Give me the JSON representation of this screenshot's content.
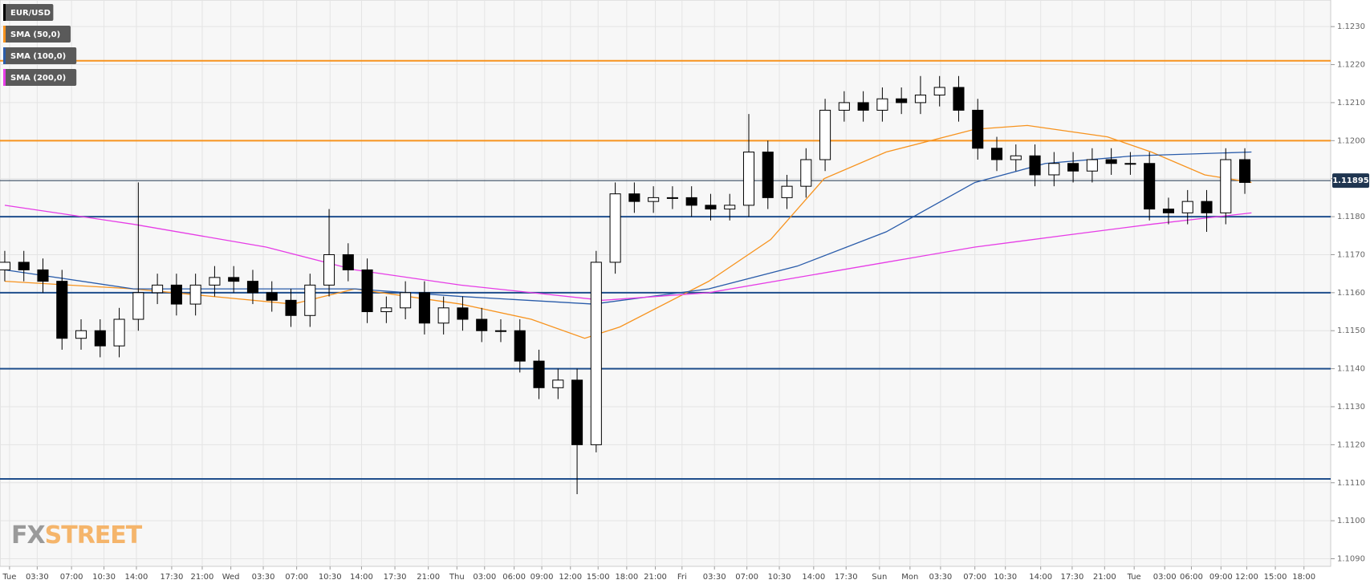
{
  "chart_data": {
    "type": "candlestick",
    "candle_name": "EUR/USD",
    "up_color": "#ffffff",
    "down_color": "#000000",
    "x": [
      0,
      2,
      4,
      6,
      8,
      10,
      12,
      14,
      16,
      18,
      20,
      22,
      24,
      26,
      28,
      30,
      32,
      34,
      36,
      38,
      40,
      42,
      44,
      46,
      48,
      50,
      52,
      54,
      56,
      58,
      60,
      62,
      64,
      66,
      68,
      70,
      72,
      74,
      76,
      78,
      80,
      82,
      84,
      86,
      88,
      90,
      92,
      94,
      96,
      98,
      100,
      102,
      104,
      106,
      108,
      110,
      112,
      114,
      116,
      118,
      120,
      122,
      124,
      126,
      128,
      130
    ],
    "open": [
      1.1166,
      1.1168,
      1.1166,
      1.1163,
      1.1148,
      1.115,
      1.1146,
      1.1153,
      1.116,
      1.1162,
      1.1157,
      1.1162,
      1.1164,
      1.1163,
      1.116,
      1.1158,
      1.1154,
      1.1162,
      1.117,
      1.1166,
      1.1155,
      1.1156,
      1.116,
      1.1152,
      1.1156,
      1.1153,
      1.115,
      1.115,
      1.1142,
      1.1135,
      1.1137,
      1.112,
      1.1168,
      1.1186,
      1.1184,
      1.1185,
      1.1185,
      1.1183,
      1.1182,
      1.1183,
      1.1197,
      1.1185,
      1.1188,
      1.1195,
      1.1208,
      1.121,
      1.1208,
      1.1211,
      1.121,
      1.1212,
      1.1214,
      1.1208,
      1.1198,
      1.1195,
      1.1196,
      1.1191,
      1.1194,
      1.1192,
      1.1195,
      1.1194,
      1.1194,
      1.1182,
      1.1181,
      1.1184,
      1.1181,
      1.1195
    ],
    "high": [
      1.1171,
      1.1171,
      1.1169,
      1.1166,
      1.1153,
      1.1153,
      1.1156,
      1.1189,
      1.1165,
      1.1165,
      1.1165,
      1.1167,
      1.1167,
      1.1166,
      1.1163,
      1.1161,
      1.1165,
      1.1182,
      1.1173,
      1.1169,
      1.1159,
      1.1163,
      1.1163,
      1.1159,
      1.1159,
      1.1156,
      1.1153,
      1.1153,
      1.1145,
      1.114,
      1.114,
      1.1171,
      1.1189,
      1.1189,
      1.1188,
      1.1188,
      1.1188,
      1.1186,
      1.1186,
      1.1207,
      1.12,
      1.1191,
      1.1198,
      1.1211,
      1.1213,
      1.1213,
      1.1214,
      1.1214,
      1.1217,
      1.1217,
      1.1217,
      1.1211,
      1.1201,
      1.1199,
      1.1199,
      1.1197,
      1.1197,
      1.1198,
      1.1198,
      1.1197,
      1.1197,
      1.1185,
      1.1187,
      1.1187,
      1.1198,
      1.1198
    ],
    "low": [
      1.1163,
      1.1163,
      1.116,
      1.1145,
      1.1145,
      1.1143,
      1.1143,
      1.115,
      1.1157,
      1.1154,
      1.1154,
      1.1159,
      1.116,
      1.1157,
      1.1155,
      1.1151,
      1.1151,
      1.1159,
      1.1163,
      1.1152,
      1.1152,
      1.1153,
      1.1149,
      1.1149,
      1.115,
      1.1147,
      1.1147,
      1.1139,
      1.1132,
      1.1132,
      1.1107,
      1.1118,
      1.1165,
      1.1181,
      1.1181,
      1.1182,
      1.118,
      1.1179,
      1.1179,
      1.118,
      1.1182,
      1.1182,
      1.1185,
      1.1192,
      1.1205,
      1.1205,
      1.1205,
      1.1207,
      1.1207,
      1.1209,
      1.1205,
      1.1195,
      1.1192,
      1.1192,
      1.1188,
      1.1188,
      1.1189,
      1.1189,
      1.1191,
      1.1191,
      1.1179,
      1.1178,
      1.1178,
      1.1176,
      1.1178,
      1.1186
    ],
    "close": [
      1.1168,
      1.1166,
      1.1163,
      1.1148,
      1.115,
      1.1146,
      1.1153,
      1.116,
      1.1162,
      1.1157,
      1.1162,
      1.1164,
      1.1163,
      1.116,
      1.1158,
      1.1154,
      1.1162,
      1.117,
      1.1166,
      1.1155,
      1.1156,
      1.116,
      1.1152,
      1.1156,
      1.1153,
      1.115,
      1.115,
      1.1142,
      1.1135,
      1.1137,
      1.112,
      1.1168,
      1.1186,
      1.1184,
      1.1185,
      1.1185,
      1.1183,
      1.1182,
      1.1183,
      1.1197,
      1.1185,
      1.1188,
      1.1195,
      1.1208,
      1.121,
      1.1208,
      1.1211,
      1.121,
      1.1212,
      1.1214,
      1.1208,
      1.1198,
      1.1195,
      1.1196,
      1.1191,
      1.1194,
      1.1192,
      1.1195,
      1.1194,
      1.1194,
      1.1182,
      1.1181,
      1.1184,
      1.1181,
      1.1195,
      1.1189
    ],
    "series": [
      {
        "name": "SMA (50,0)",
        "color": "#f7931e",
        "x": [
          0,
          13.5,
          30.2,
          36.7,
          47.8,
          55.2,
          60.8,
          64.5,
          73.8,
          80.3,
          85.9,
          92.4,
          101.7,
          107.2,
          115.6,
          120.2,
          125.8,
          130.7
        ],
        "values": [
          1.1163,
          1.1161,
          1.1157,
          1.1161,
          1.1157,
          1.1153,
          1.1148,
          1.1151,
          1.1163,
          1.1174,
          1.119,
          1.1197,
          1.1203,
          1.1204,
          1.1201,
          1.1197,
          1.1191,
          1.1189
        ]
      },
      {
        "name": "SMA (100,0)",
        "color": "#2a5caa",
        "x": [
          0,
          13.5,
          36.7,
          47.8,
          61.7,
          73.8,
          83.1,
          92.4,
          101.7,
          109.1,
          118.4,
          130.7
        ],
        "values": [
          1.1166,
          1.1161,
          1.1161,
          1.1159,
          1.1157,
          1.1161,
          1.1167,
          1.1176,
          1.1189,
          1.1194,
          1.1196,
          1.1197
        ]
      },
      {
        "name": "SMA (200,0)",
        "color": "#e63ce6",
        "x": [
          0,
          13.5,
          27.4,
          36.7,
          47.8,
          62.7,
          73.8,
          83.1,
          92.4,
          101.7,
          110.9,
          120.2,
          130.7
        ],
        "values": [
          1.1183,
          1.1178,
          1.1172,
          1.1166,
          1.1162,
          1.1158,
          1.116,
          1.1164,
          1.1168,
          1.1172,
          1.1175,
          1.1178,
          1.1181
        ]
      }
    ],
    "hlines": [
      {
        "value": 1.1221,
        "color": "#f7931e"
      },
      {
        "value": 1.12,
        "color": "#f7931e"
      },
      {
        "value": 1.118,
        "color": "#1f4e8c"
      },
      {
        "value": 1.116,
        "color": "#1f4e8c"
      },
      {
        "value": 1.114,
        "color": "#1f4e8c"
      },
      {
        "value": 1.1111,
        "color": "#1f4e8c"
      }
    ],
    "last_price": {
      "value": 1.11895,
      "label": "1.11895"
    },
    "xlim": [
      -0.5,
      139
    ],
    "ylim": [
      1.1088,
      1.1237
    ],
    "yticks": [
      {
        "value": 1.109,
        "label": "1.1090"
      },
      {
        "value": 1.11,
        "label": "1.1100"
      },
      {
        "value": 1.111,
        "label": "1.1110"
      },
      {
        "value": 1.112,
        "label": "1.1120"
      },
      {
        "value": 1.113,
        "label": "1.1130"
      },
      {
        "value": 1.114,
        "label": "1.1140"
      },
      {
        "value": 1.115,
        "label": "1.1150"
      },
      {
        "value": 1.116,
        "label": "1.1160"
      },
      {
        "value": 1.117,
        "label": "1.1170"
      },
      {
        "value": 1.118,
        "label": "1.1180"
      },
      {
        "value": 1.119,
        "label": "1.1190"
      },
      {
        "value": 1.12,
        "label": "1.1200"
      },
      {
        "value": 1.121,
        "label": "1.1210"
      },
      {
        "value": 1.122,
        "label": "1.1220"
      },
      {
        "value": 1.123,
        "label": "1.1230"
      }
    ],
    "xticks": [
      {
        "value": 0.5,
        "label": "Tue"
      },
      {
        "value": 3.4,
        "label": "03:30"
      },
      {
        "value": 7,
        "label": "07:00"
      },
      {
        "value": 10.4,
        "label": "10:30"
      },
      {
        "value": 13.8,
        "label": "14:00"
      },
      {
        "value": 17.5,
        "label": "17:30"
      },
      {
        "value": 20.7,
        "label": "21:00"
      },
      {
        "value": 23.7,
        "label": "Wed"
      },
      {
        "value": 27.1,
        "label": "03:30"
      },
      {
        "value": 30.6,
        "label": "07:00"
      },
      {
        "value": 34.1,
        "label": "10:30"
      },
      {
        "value": 37.4,
        "label": "14:00"
      },
      {
        "value": 40.9,
        "label": "17:30"
      },
      {
        "value": 44.4,
        "label": "21:00"
      },
      {
        "value": 47.4,
        "label": "Thu"
      },
      {
        "value": 50.3,
        "label": "03:00"
      },
      {
        "value": 53.4,
        "label": "06:00"
      },
      {
        "value": 56.3,
        "label": "09:00"
      },
      {
        "value": 59.3,
        "label": "12:00"
      },
      {
        "value": 62.2,
        "label": "15:00"
      },
      {
        "value": 65.2,
        "label": "18:00"
      },
      {
        "value": 68.2,
        "label": "21:00"
      },
      {
        "value": 71,
        "label": "Fri"
      },
      {
        "value": 74.4,
        "label": "03:30"
      },
      {
        "value": 77.8,
        "label": "07:00"
      },
      {
        "value": 81.2,
        "label": "10:30"
      },
      {
        "value": 84.8,
        "label": "14:00"
      },
      {
        "value": 88.2,
        "label": "17:30"
      },
      {
        "value": 91.7,
        "label": "Sun"
      },
      {
        "value": 94.9,
        "label": "Mon"
      },
      {
        "value": 98.1,
        "label": "03:30"
      },
      {
        "value": 101.7,
        "label": "07:00"
      },
      {
        "value": 104.9,
        "label": "10:30"
      },
      {
        "value": 108.6,
        "label": "14:00"
      },
      {
        "value": 111.9,
        "label": "17:30"
      },
      {
        "value": 115.3,
        "label": "21:00"
      },
      {
        "value": 118.4,
        "label": "Tue"
      },
      {
        "value": 121.6,
        "label": "03:00"
      },
      {
        "value": 124.4,
        "label": "06:00"
      },
      {
        "value": 127.5,
        "label": "09:00"
      },
      {
        "value": 130.2,
        "label": "12:00"
      },
      {
        "value": 133.2,
        "label": "15:00"
      },
      {
        "value": 136.2,
        "label": "18:00"
      }
    ],
    "grid": true,
    "watermark": [
      "FX",
      "STREET"
    ]
  }
}
